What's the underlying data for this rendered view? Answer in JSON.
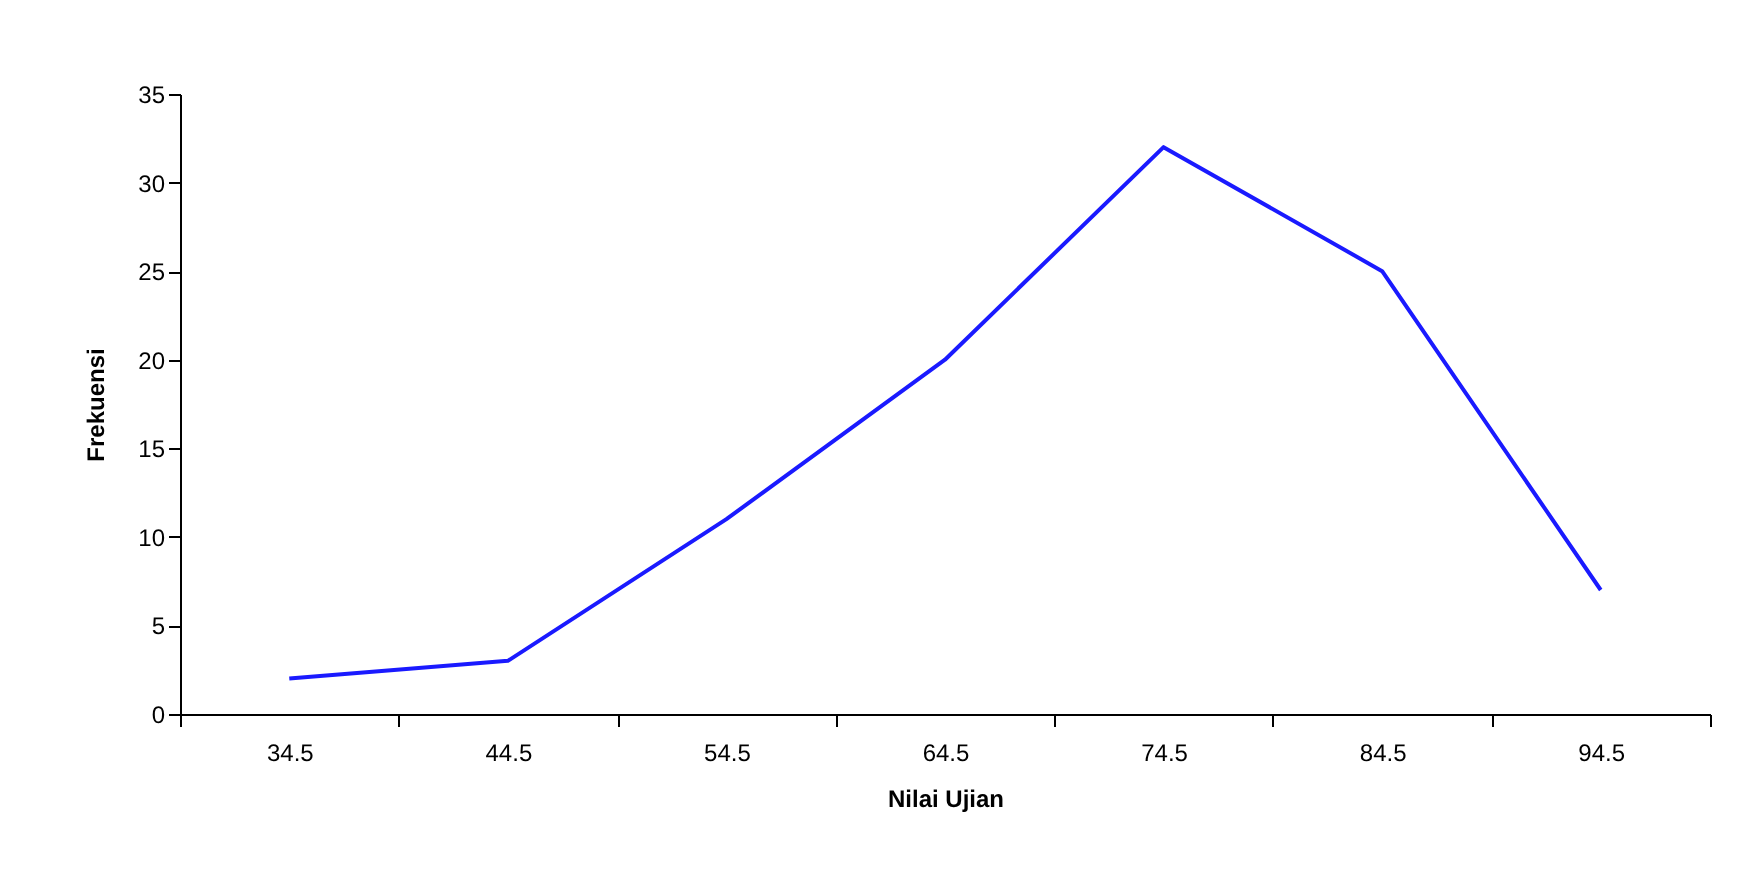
{
  "chart_data": {
    "type": "line",
    "xlabel": "Nilai Ujian",
    "ylabel": "Frekuensi",
    "categories": [
      "34.5",
      "44.5",
      "54.5",
      "64.5",
      "74.5",
      "84.5",
      "94.5"
    ],
    "series": [
      {
        "color": "#1a1aff",
        "values": [
          2,
          3,
          11,
          20,
          32,
          25,
          7
        ]
      }
    ],
    "ylim": [
      0,
      35
    ],
    "yticks": [
      0,
      5,
      10,
      15,
      20,
      25,
      30,
      35
    ],
    "grid": false,
    "marker": "none",
    "line_style": "solid"
  }
}
